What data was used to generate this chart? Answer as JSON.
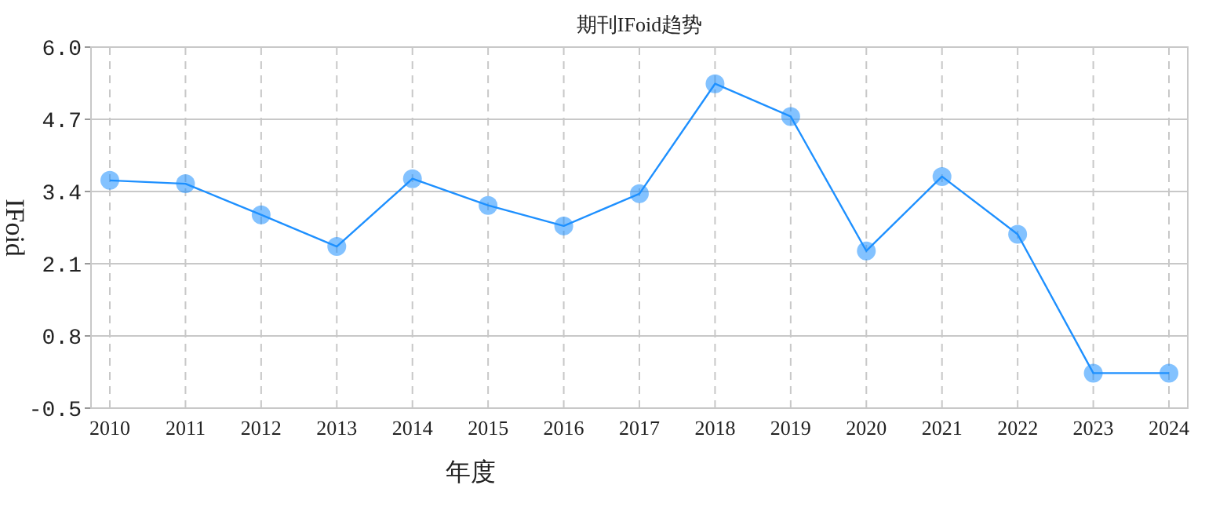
{
  "chart_data": {
    "type": "line",
    "title": "期刊IFoid趋势",
    "xlabel": "年度",
    "ylabel": "IFoid",
    "categories": [
      "2010",
      "2011",
      "2012",
      "2013",
      "2014",
      "2015",
      "2016",
      "2017",
      "2018",
      "2019",
      "2020",
      "2021",
      "2022",
      "2023",
      "2024"
    ],
    "series": [
      {
        "color": "#1e90ff",
        "values": [
          3.6,
          3.54,
          2.98,
          2.41,
          3.63,
          3.15,
          2.78,
          3.36,
          5.34,
          4.75,
          2.33,
          3.67,
          2.63,
          0.13,
          0.13
        ]
      }
    ],
    "ylim": [
      -0.5,
      6.0
    ],
    "yticks": [
      -0.5,
      0.8,
      2.1,
      3.4,
      4.7,
      {
        "value": 6,
        "label": "6.0"
      }
    ],
    "grid": true,
    "marker": "circle",
    "line_style": "solid"
  }
}
